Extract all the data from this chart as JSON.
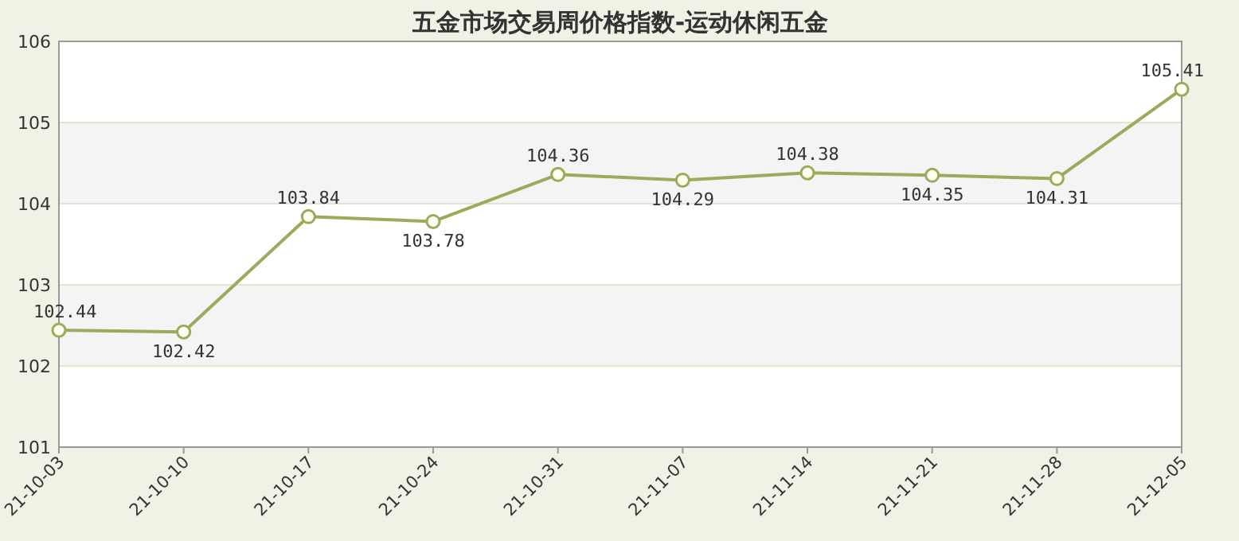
{
  "chart_data": {
    "type": "line",
    "title": "五金市场交易周价格指数-运动休闲五金",
    "categories": [
      "21-10-03",
      "21-10-10",
      "21-10-17",
      "21-10-24",
      "21-10-31",
      "21-11-07",
      "21-11-14",
      "21-11-21",
      "21-11-28",
      "21-12-05"
    ],
    "series": [
      {
        "color": "#9aab5c",
        "values": [
          102.44,
          102.42,
          103.84,
          103.78,
          104.36,
          104.29,
          104.38,
          104.35,
          104.31,
          105.41
        ]
      }
    ],
    "ylim": [
      101,
      106
    ],
    "yticks": [
      101,
      102,
      103,
      104,
      105,
      106
    ],
    "grid": "y",
    "marker": "circle",
    "data_labels": true
  }
}
